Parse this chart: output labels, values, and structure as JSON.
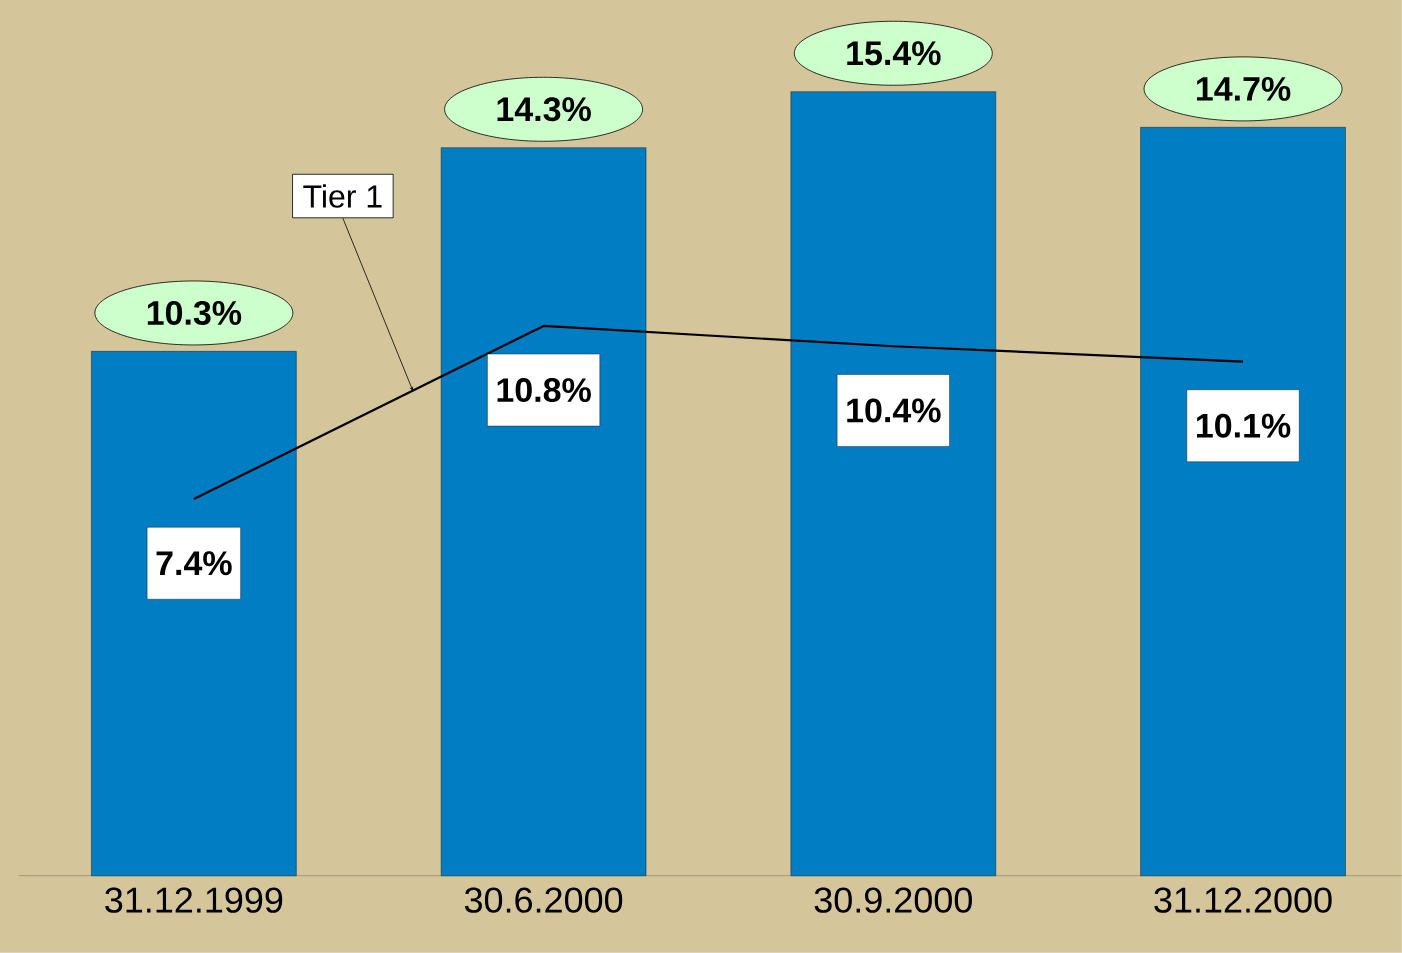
{
  "chart_data": {
    "type": "bar",
    "categories": [
      "31.12.1999",
      "30.6.2000",
      "30.9.2000",
      "31.12.2000"
    ],
    "ylim": [
      0,
      17.2
    ],
    "marker": "none",
    "line_style": "solid",
    "series": [
      {
        "color": "#007dc3",
        "values": [
          10.3,
          14.3,
          15.4,
          14.7
        ],
        "value_labels": [
          "10.3%",
          "14.3%",
          "15.4%",
          "14.7%"
        ]
      },
      {
        "type": "line",
        "name": "Tier 1",
        "color": "#000000",
        "values": [
          7.4,
          10.8,
          10.4,
          10.1
        ],
        "value_labels": [
          "7.4%",
          "10.8%",
          "10.4%",
          "10.1%"
        ]
      }
    ]
  }
}
